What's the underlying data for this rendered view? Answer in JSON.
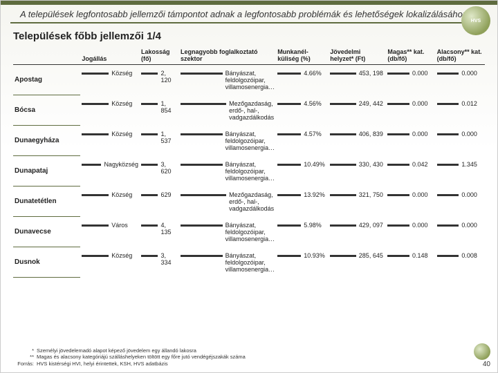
{
  "title": "A települések legfontosabb jellemzői támpontot adnak a legfontosabb problémák és lehetőségek lokalizálásához",
  "subtitle": "Települések főbb jellemzői 1/4",
  "logo_text": "HVS",
  "columns": {
    "name": "",
    "jog": "Jogállás",
    "lak": "Lakosság (fő)",
    "szektor": "Legnagyobb foglalkoztató szektor",
    "munk": "Munkanél-küliség (%)",
    "jov": "Jövedelmi helyzet* (Ft)",
    "magas": "Magas** kat. (db/fő)",
    "alacs": "Alacsony** kat. (db/fő)"
  },
  "rows": [
    {
      "name": "Apostag",
      "jog": "Község",
      "lak": "2, 120",
      "szektor": "Bányászat, feldolgozóipar, villamosenergia…",
      "munk": "4.66%",
      "jov": "453, 198",
      "magas": "0.000",
      "alacs": "0.000"
    },
    {
      "name": "Bócsa",
      "jog": "Község",
      "lak": "1, 854",
      "szektor": "Mezőgazdaság, erdő-, hal-, vadgazdálkodás",
      "munk": "4.56%",
      "jov": "249, 442",
      "magas": "0.000",
      "alacs": "0.012"
    },
    {
      "name": "Dunaegyháza",
      "jog": "Község",
      "lak": "1, 537",
      "szektor": "Bányászat, feldolgozóipar, villamosenergia…",
      "munk": "4.57%",
      "jov": "406, 839",
      "magas": "0.000",
      "alacs": "0.000"
    },
    {
      "name": "Dunapataj",
      "jog": "Nagyközség",
      "lak": "3, 620",
      "szektor": "Bányászat, feldolgozóipar, villamosenergia…",
      "munk": "10.49%",
      "jov": "330, 430",
      "magas": "0.042",
      "alacs": "1.345"
    },
    {
      "name": "Dunatetétlen",
      "jog": "Község",
      "lak": "629",
      "szektor": "Mezőgazdaság, erdő-, hal-, vadgazdálkodás",
      "munk": "13.92%",
      "jov": "321, 750",
      "magas": "0.000",
      "alacs": "0.000"
    },
    {
      "name": "Dunavecse",
      "jog": "Város",
      "lak": "4, 135",
      "szektor": "Bányászat, feldolgozóipar, villamosenergia…",
      "munk": "5.98%",
      "jov": "429, 097",
      "magas": "0.000",
      "alacs": "0.000"
    },
    {
      "name": "Dusnok",
      "jog": "Község",
      "lak": "3, 334",
      "szektor": "Bányászat, feldolgozóipar, villamosenergia…",
      "munk": "10.93%",
      "jov": "285, 645",
      "magas": "0.148",
      "alacs": "0.008"
    }
  ],
  "footnotes": {
    "f1_mark": "*",
    "f1": "Személyi jövedelemadó alapot képező jövedelem egy állandó lakosra",
    "f2_mark": "**",
    "f2": "Magas és alacsony kategóriájú szálláshelyeken töltött egy főre jutó vendégéjszakák száma",
    "src_label": "Forrás:",
    "src": "HVS kistérségi HVI, helyi érintettek, KSH, HVS adatbázis"
  },
  "page": "40",
  "colors": {
    "brand": "#5e6b3e"
  }
}
